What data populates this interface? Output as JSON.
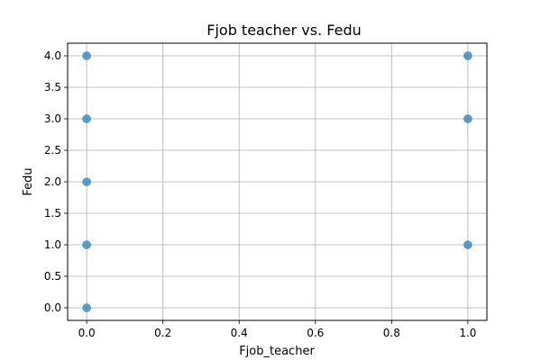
{
  "chart_data": {
    "type": "scatter",
    "title": "Fjob teacher vs. Fedu",
    "xlabel": "Fjob_teacher",
    "ylabel": "Fedu",
    "xlim": [
      -0.05,
      1.05
    ],
    "ylim": [
      -0.2,
      4.2
    ],
    "x_ticks": [
      "0.0",
      "0.2",
      "0.4",
      "0.6",
      "0.8",
      "1.0"
    ],
    "y_ticks": [
      "0.0",
      "0.5",
      "1.0",
      "1.5",
      "2.0",
      "2.5",
      "3.0",
      "3.5",
      "4.0"
    ],
    "grid": true,
    "series": [
      {
        "color": "#1f77b4",
        "points": [
          {
            "x": 0,
            "y": 0
          },
          {
            "x": 0,
            "y": 1
          },
          {
            "x": 0,
            "y": 2
          },
          {
            "x": 0,
            "y": 3
          },
          {
            "x": 0,
            "y": 4
          },
          {
            "x": 1,
            "y": 1
          },
          {
            "x": 1,
            "y": 3
          },
          {
            "x": 1,
            "y": 4
          }
        ]
      }
    ]
  }
}
